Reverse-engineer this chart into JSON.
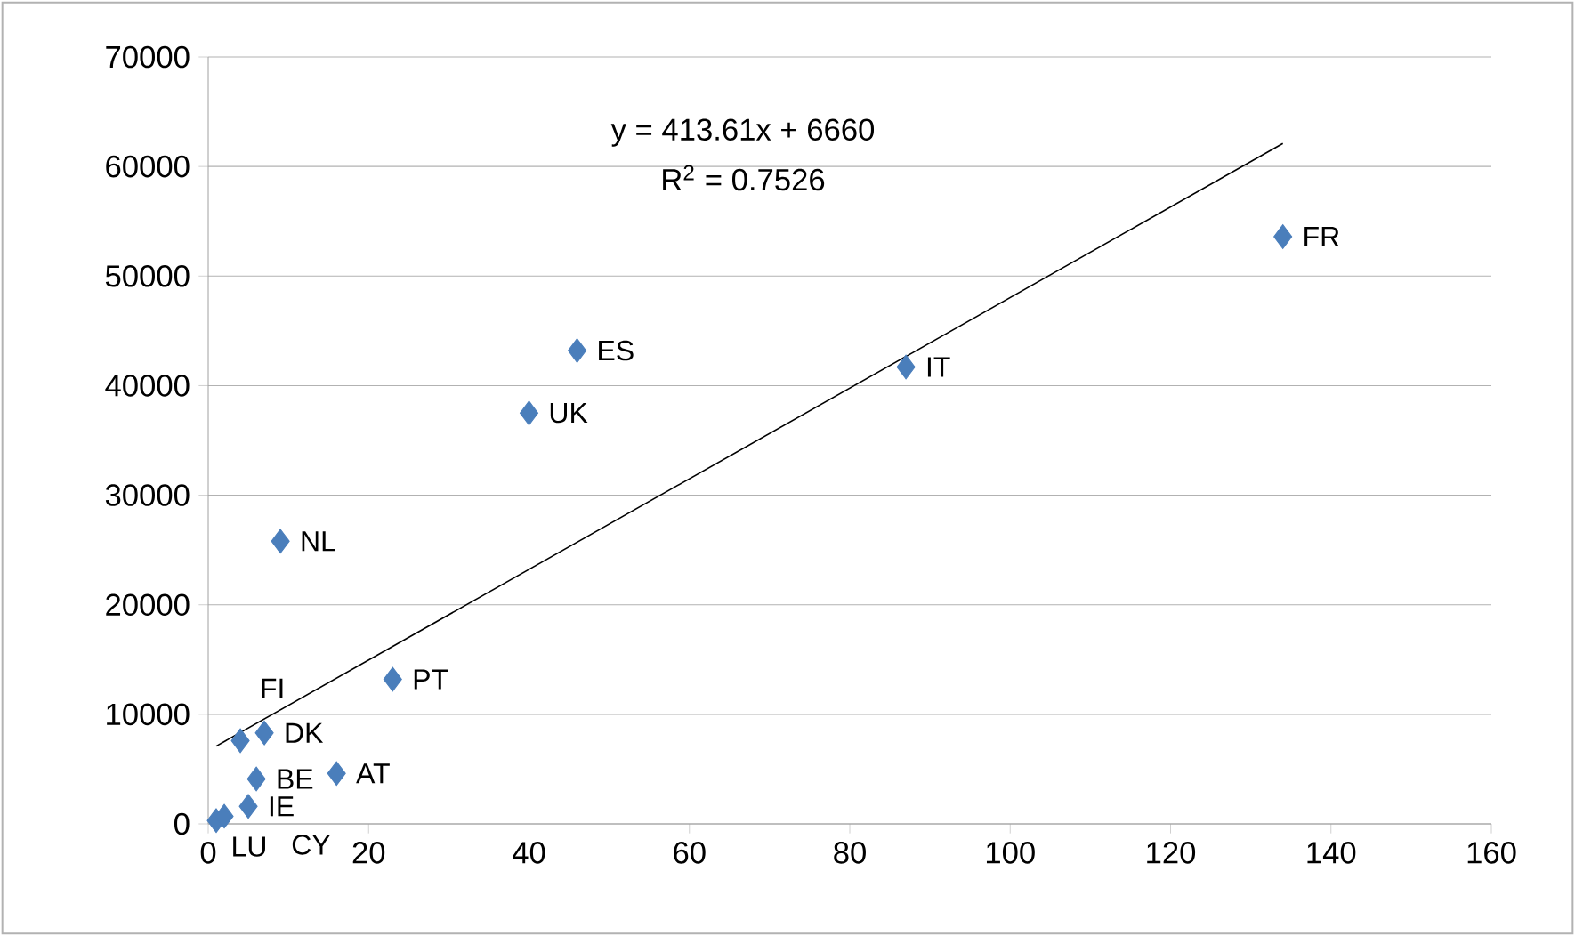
{
  "chart_data": {
    "type": "scatter",
    "series": [
      {
        "color": "#4a7ebb",
        "marker": "diamond",
        "x": [
          134,
          87,
          46,
          40,
          9,
          23,
          7,
          4,
          16,
          6,
          5,
          1,
          2
        ],
        "values": [
          53600,
          41700,
          43200,
          37500,
          25800,
          13200,
          8300,
          7600,
          4600,
          4100,
          1600,
          300,
          700
        ]
      },
      {
        "type": "line",
        "marker": "none",
        "color": "#000000",
        "x": [
          1,
          134
        ],
        "values": [
          7100,
          62100
        ]
      }
    ],
    "xlim": [
      0,
      160
    ],
    "xticks": [
      0,
      20,
      40,
      60,
      80,
      100,
      120,
      140,
      160
    ],
    "ylim": [
      0,
      70000
    ],
    "yticks": [
      0,
      10000,
      20000,
      30000,
      40000,
      50000,
      60000,
      70000
    ],
    "grid": "y",
    "annotations": [
      {
        "text": "FR",
        "x": 134,
        "y": 53600
      },
      {
        "text": "IT",
        "x": 87,
        "y": 41700
      },
      {
        "text": "ES",
        "x": 46,
        "y": 43200
      },
      {
        "text": "UK",
        "x": 40,
        "y": 37500
      },
      {
        "text": "NL",
        "x": 9,
        "y": 25800
      },
      {
        "text": "PT",
        "x": 23,
        "y": 13200
      },
      {
        "text": "DK",
        "x": 7,
        "y": 8300
      },
      {
        "text": "FI",
        "x": 4,
        "y": 7600
      },
      {
        "text": "AT",
        "x": 16,
        "y": 4600
      },
      {
        "text": "BE",
        "x": 6,
        "y": 4100
      },
      {
        "text": "IE",
        "x": 5,
        "y": 1600
      },
      {
        "text": "LU",
        "x": 1,
        "y": 300
      },
      {
        "text": "CY",
        "x": 2,
        "y": 700
      },
      "y = 413.61x + 6660",
      "R$^{2}$ = 0.7526"
    ]
  }
}
